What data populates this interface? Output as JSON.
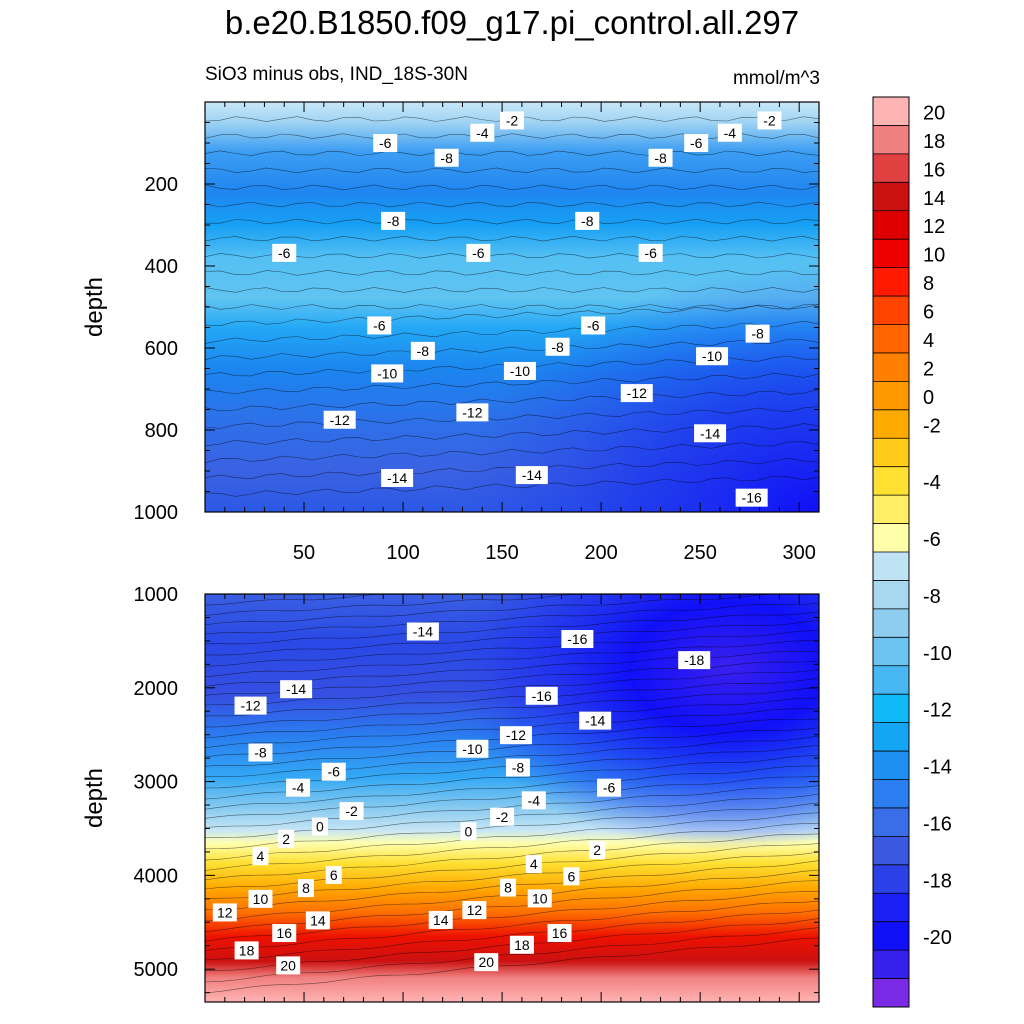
{
  "title": "b.e20.B1850.f09_g17.pi_control.all.297",
  "subtitle": "SiO3 minus obs, IND_18S-30N",
  "units": "mmol/m^3",
  "chart_data": [
    {
      "type": "contour",
      "name": "upper panel",
      "ylabel": "depth",
      "xlim": [
        0,
        310
      ],
      "ylim": [
        1000,
        0
      ],
      "x_ticks": [
        50,
        100,
        150,
        200,
        250,
        300
      ],
      "x_tick_labels": [
        "50",
        "100",
        "150",
        "200",
        "250",
        "300"
      ],
      "y_ticks": [
        200,
        400,
        600,
        800,
        1000
      ],
      "y_tick_labels": [
        "200",
        "400",
        "600",
        "800",
        "1000"
      ],
      "contour_labels": [
        {
          "text": "-2",
          "x": 155,
          "y": 45
        },
        {
          "text": "-2",
          "x": 285,
          "y": 45
        },
        {
          "text": "-4",
          "x": 140,
          "y": 75
        },
        {
          "text": "-4",
          "x": 265,
          "y": 75
        },
        {
          "text": "-6",
          "x": 91,
          "y": 100
        },
        {
          "text": "-6",
          "x": 248,
          "y": 100
        },
        {
          "text": "-8",
          "x": 122,
          "y": 136
        },
        {
          "text": "-8",
          "x": 230,
          "y": 136
        },
        {
          "text": "-8",
          "x": 95,
          "y": 290
        },
        {
          "text": "-8",
          "x": 193,
          "y": 290
        },
        {
          "text": "-6",
          "x": 40,
          "y": 368
        },
        {
          "text": "-6",
          "x": 138,
          "y": 368
        },
        {
          "text": "-6",
          "x": 225,
          "y": 368
        },
        {
          "text": "-6",
          "x": 88,
          "y": 545
        },
        {
          "text": "-6",
          "x": 196,
          "y": 545
        },
        {
          "text": "-8",
          "x": 279,
          "y": 565
        },
        {
          "text": "-8",
          "x": 110,
          "y": 607
        },
        {
          "text": "-8",
          "x": 178,
          "y": 597
        },
        {
          "text": "-10",
          "x": 92,
          "y": 662
        },
        {
          "text": "-10",
          "x": 159,
          "y": 656
        },
        {
          "text": "-10",
          "x": 256,
          "y": 620
        },
        {
          "text": "-12",
          "x": 218,
          "y": 710
        },
        {
          "text": "-12",
          "x": 68,
          "y": 775
        },
        {
          "text": "-12",
          "x": 135,
          "y": 757
        },
        {
          "text": "-14",
          "x": 255,
          "y": 808
        },
        {
          "text": "-14",
          "x": 97,
          "y": 917
        },
        {
          "text": "-14",
          "x": 165,
          "y": 910
        },
        {
          "text": "-16",
          "x": 276,
          "y": 965
        }
      ]
    },
    {
      "type": "contour",
      "name": "lower panel",
      "ylabel": "depth",
      "xlim": [
        0,
        310
      ],
      "ylim": [
        5350,
        1000
      ],
      "x_ticks": [
        50,
        100,
        150,
        200,
        250,
        300
      ],
      "y_ticks": [
        1000,
        2000,
        3000,
        4000,
        5000
      ],
      "y_tick_labels": [
        "1000",
        "2000",
        "3000",
        "4000",
        "5000"
      ],
      "colorbar": {
        "levels": [
          20,
          18,
          16,
          14,
          12,
          10,
          8,
          6,
          4,
          2,
          0,
          -2,
          -4,
          -6,
          -8,
          -10,
          -12,
          -14,
          -16,
          -18,
          -20
        ],
        "level_labels": [
          "20",
          "18",
          "16",
          "14",
          "12",
          "10",
          "8",
          "6",
          "4",
          "2",
          "0",
          "-2",
          "-4",
          "-6",
          "-8",
          "-10",
          "-12",
          "-14",
          "-16",
          "-18",
          "-20"
        ],
        "colors": [
          "#ffb3b3",
          "#f08080",
          "#e04040",
          "#cc1111",
          "#dd0000",
          "#ee0000",
          "#ff1a00",
          "#ff4400",
          "#ff6600",
          "#ff8000",
          "#ff9900",
          "#ffaa00",
          "#ffcc1a",
          "#ffe033",
          "#ffee66",
          "#ffffaa",
          "#bfe3f5",
          "#a8d8f0",
          "#8ecdf0",
          "#6cc3f2",
          "#48b8f5",
          "#10b8f8",
          "#14a5f5",
          "#1e90f2",
          "#2a7ef0",
          "#3a6ee8",
          "#3a58e0",
          "#2c40e8",
          "#1a20f5",
          "#1010f8",
          "#3520ec",
          "#7a2ae6"
        ]
      },
      "contour_labels": [
        {
          "text": "-14",
          "x": 110,
          "y": 1400
        },
        {
          "text": "-16",
          "x": 188,
          "y": 1480
        },
        {
          "text": "-18",
          "x": 247,
          "y": 1705
        },
        {
          "text": "-14",
          "x": 46,
          "y": 2015
        },
        {
          "text": "-16",
          "x": 170,
          "y": 2085
        },
        {
          "text": "-12",
          "x": 23,
          "y": 2190
        },
        {
          "text": "-14",
          "x": 197,
          "y": 2350
        },
        {
          "text": "-12",
          "x": 157,
          "y": 2505
        },
        {
          "text": "-10",
          "x": 135,
          "y": 2650
        },
        {
          "text": "-8",
          "x": 28,
          "y": 2690
        },
        {
          "text": "-8",
          "x": 158,
          "y": 2850
        },
        {
          "text": "-6",
          "x": 65,
          "y": 2895
        },
        {
          "text": "-4",
          "x": 47,
          "y": 3065
        },
        {
          "text": "-6",
          "x": 204,
          "y": 3065
        },
        {
          "text": "-4",
          "x": 166,
          "y": 3200
        },
        {
          "text": "-2",
          "x": 74,
          "y": 3315
        },
        {
          "text": "-2",
          "x": 150,
          "y": 3375
        },
        {
          "text": "0",
          "x": 58,
          "y": 3480
        },
        {
          "text": "0",
          "x": 133,
          "y": 3530
        },
        {
          "text": "2",
          "x": 41,
          "y": 3610
        },
        {
          "text": "2",
          "x": 198,
          "y": 3730
        },
        {
          "text": "4",
          "x": 28,
          "y": 3795
        },
        {
          "text": "4",
          "x": 166,
          "y": 3880
        },
        {
          "text": "6",
          "x": 65,
          "y": 3995
        },
        {
          "text": "6",
          "x": 185,
          "y": 4010
        },
        {
          "text": "8",
          "x": 51,
          "y": 4135
        },
        {
          "text": "8",
          "x": 153,
          "y": 4130
        },
        {
          "text": "10",
          "x": 28,
          "y": 4250
        },
        {
          "text": "10",
          "x": 169,
          "y": 4245
        },
        {
          "text": "12",
          "x": 10,
          "y": 4395
        },
        {
          "text": "12",
          "x": 136,
          "y": 4370
        },
        {
          "text": "14",
          "x": 57,
          "y": 4480
        },
        {
          "text": "14",
          "x": 119,
          "y": 4475
        },
        {
          "text": "16",
          "x": 40,
          "y": 4615
        },
        {
          "text": "16",
          "x": 179,
          "y": 4615
        },
        {
          "text": "18",
          "x": 21,
          "y": 4800
        },
        {
          "text": "18",
          "x": 160,
          "y": 4740
        },
        {
          "text": "20",
          "x": 42,
          "y": 4960
        },
        {
          "text": "20",
          "x": 142,
          "y": 4925
        }
      ]
    }
  ]
}
